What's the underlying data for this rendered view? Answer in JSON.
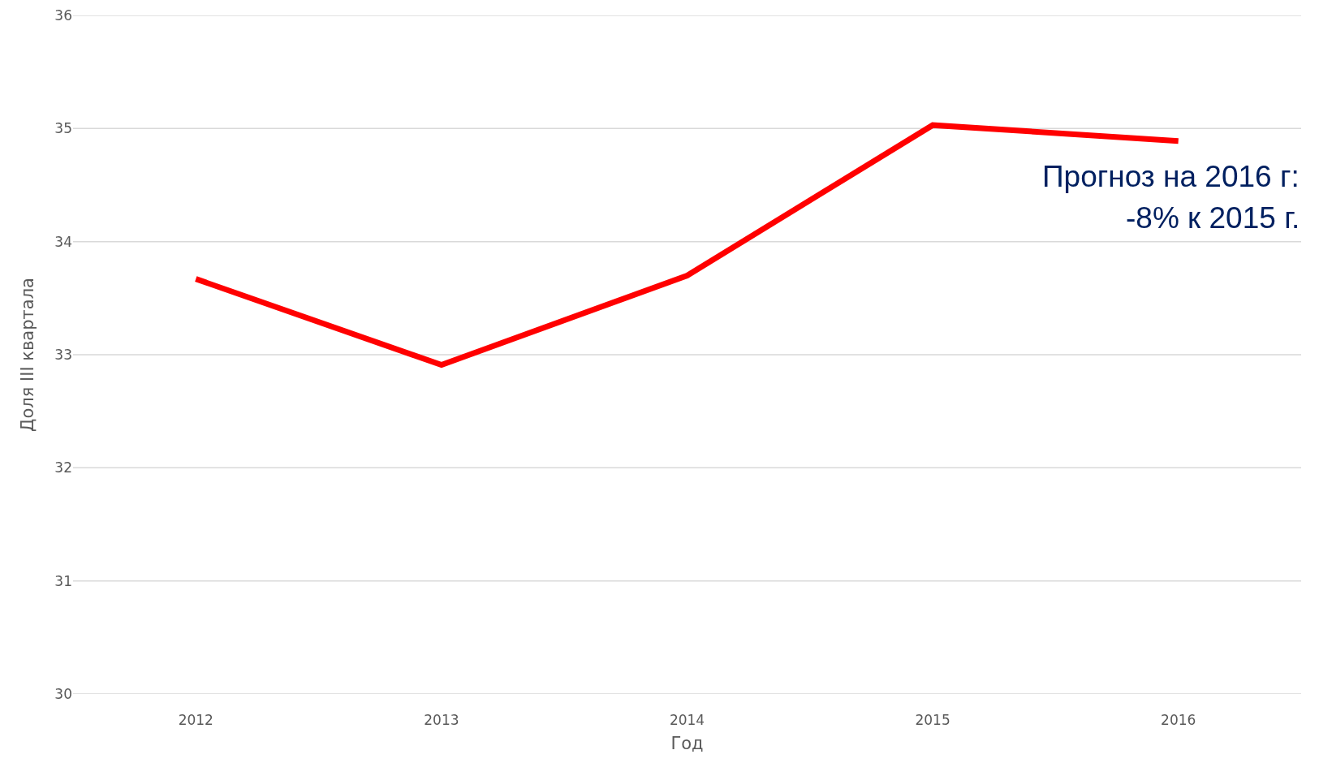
{
  "chart_data": {
    "type": "line",
    "xlabel": "Год",
    "ylabel": "Доля III квартала",
    "categories": [
      "2012",
      "2013",
      "2014",
      "2015",
      "2016"
    ],
    "series": [
      {
        "color": "#ff0000",
        "values": [
          33.67,
          32.91,
          33.7,
          35.03,
          34.89
        ]
      }
    ],
    "ylim": [
      30,
      36
    ],
    "yticks": [
      30,
      31,
      32,
      33,
      34,
      35,
      36
    ],
    "grid": "y",
    "marker": "none",
    "line_style": "solid",
    "annotations": [
      "Прогноз на 2016 г:",
      "-8% к 2015 г."
    ]
  }
}
